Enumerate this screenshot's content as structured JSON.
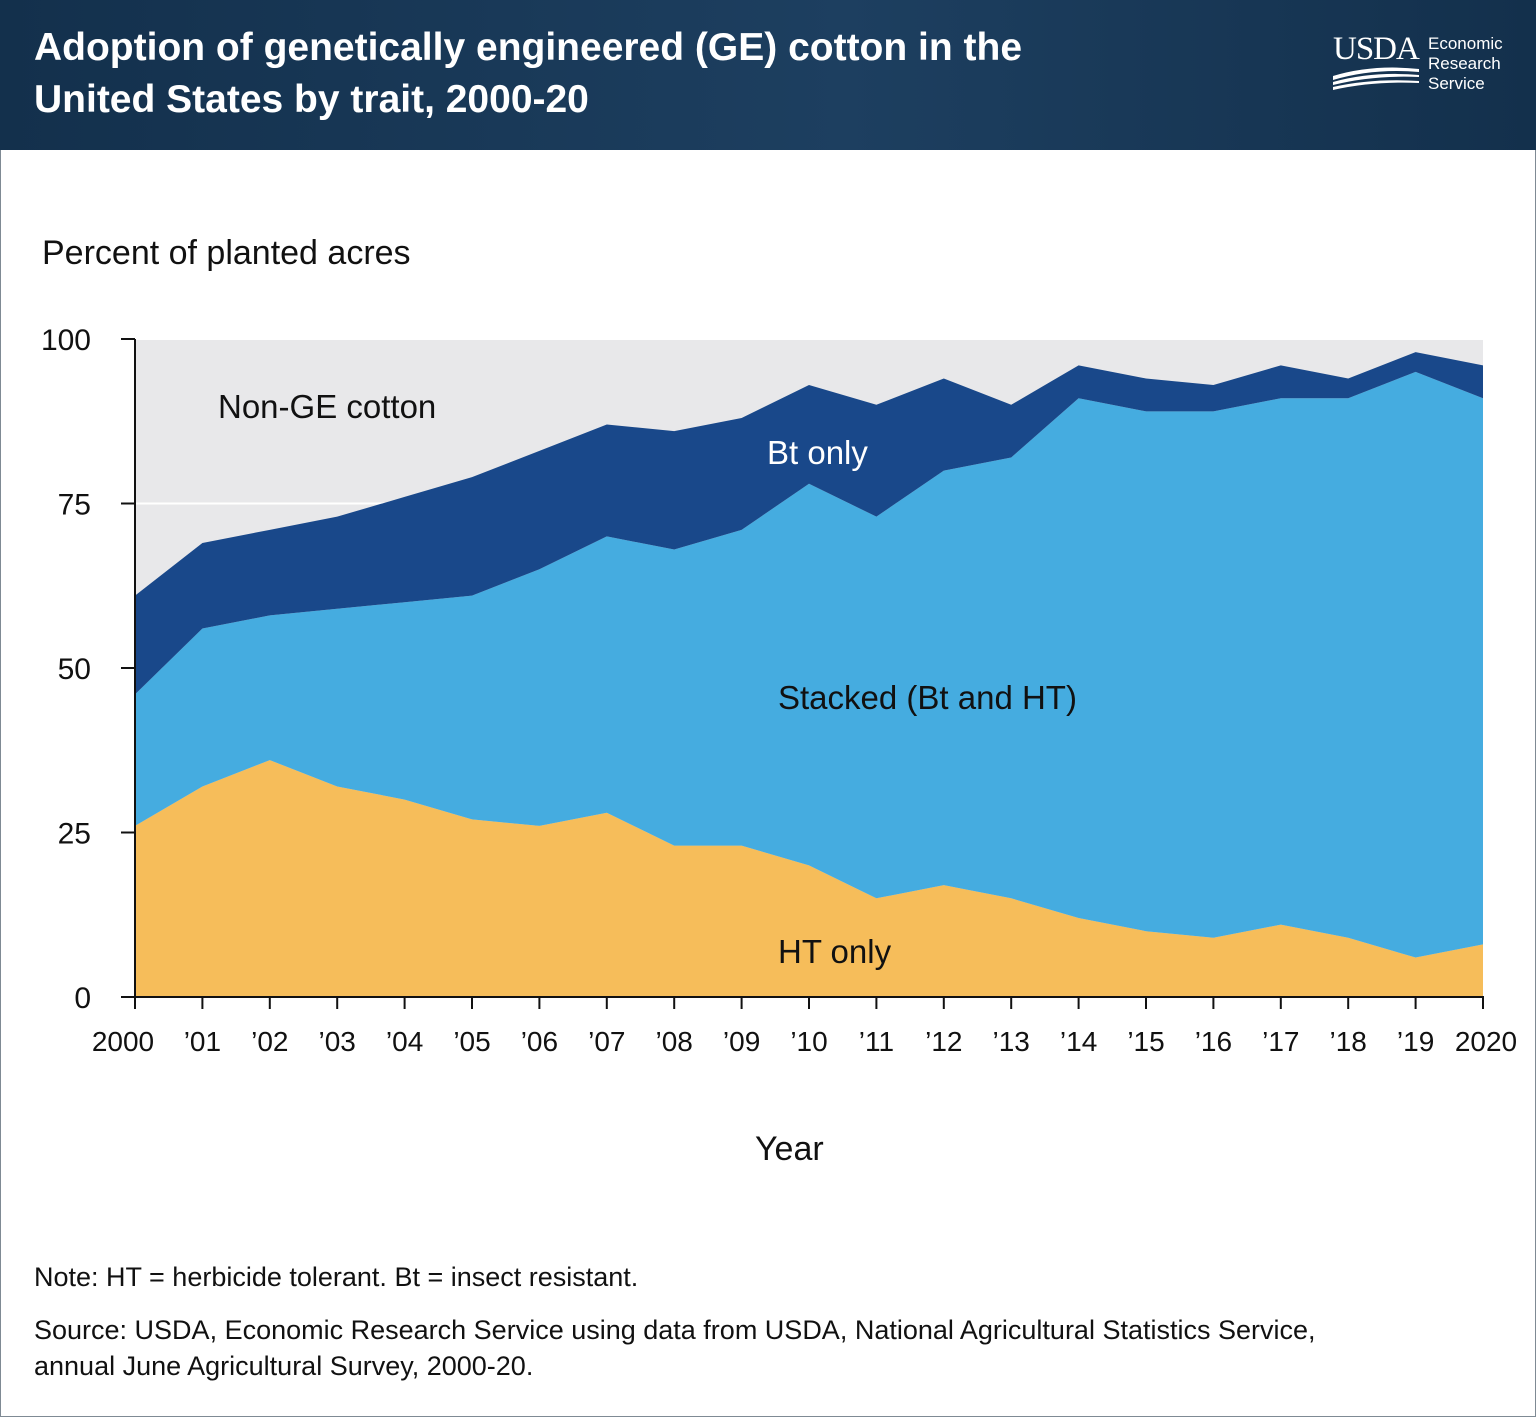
{
  "header": {
    "title_line1": "Adoption of genetically engineered (GE) cotton in the",
    "title_line2": "United States by trait, 2000-20",
    "logo_text": "USDA",
    "agency_line1": "Economic",
    "agency_line2": "Research",
    "agency_line3": "Service"
  },
  "footer": {
    "note": "Note: HT = herbicide tolerant. Bt = insect resistant.",
    "source_line1": "Source: USDA, Economic Research Service using data from USDA, National Agricultural Statistics Service,",
    "source_line2": "annual June Agricultural Survey, 2000-20."
  },
  "colors": {
    "header_bg": "#1a3a58",
    "non_ge": "#e8e8ea",
    "bt_only": "#19488a",
    "stacked": "#45ace0",
    "ht_only": "#f6bd5a"
  },
  "chart_data": {
    "type": "area",
    "stacked": true,
    "title": "Adoption of genetically engineered (GE) cotton in the United States by trait, 2000-20",
    "ylabel": "Percent of planted acres",
    "xlabel": "Year",
    "ylim": [
      0,
      100
    ],
    "yticks": [
      0,
      25,
      50,
      75,
      100
    ],
    "x": [
      2000,
      2001,
      2002,
      2003,
      2004,
      2005,
      2006,
      2007,
      2008,
      2009,
      2010,
      2011,
      2012,
      2013,
      2014,
      2015,
      2016,
      2017,
      2018,
      2019,
      2020
    ],
    "xtick_labels": [
      "2000",
      "’01",
      "’02",
      "’03",
      "’04",
      "’05",
      "’06",
      "’07",
      "’08",
      "’09",
      "’10",
      "’11",
      "’12",
      "’13",
      "’14",
      "’15",
      "’16",
      "’17",
      "’18",
      "’19",
      "2020"
    ],
    "background_label": "Non-GE cotton",
    "series": [
      {
        "name": "HT only",
        "values": [
          26,
          32,
          36,
          32,
          30,
          27,
          26,
          28,
          23,
          23,
          20,
          15,
          17,
          15,
          12,
          10,
          9,
          11,
          9,
          6,
          8
        ]
      },
      {
        "name": "Stacked (Bt and HT)",
        "values": [
          20,
          24,
          22,
          27,
          30,
          34,
          39,
          42,
          45,
          48,
          58,
          58,
          63,
          67,
          79,
          79,
          80,
          80,
          82,
          89,
          83
        ]
      },
      {
        "name": "Bt only",
        "values": [
          15,
          13,
          13,
          14,
          16,
          18,
          18,
          17,
          18,
          17,
          15,
          17,
          14,
          8,
          5,
          5,
          4,
          5,
          3,
          3,
          5
        ]
      }
    ]
  }
}
